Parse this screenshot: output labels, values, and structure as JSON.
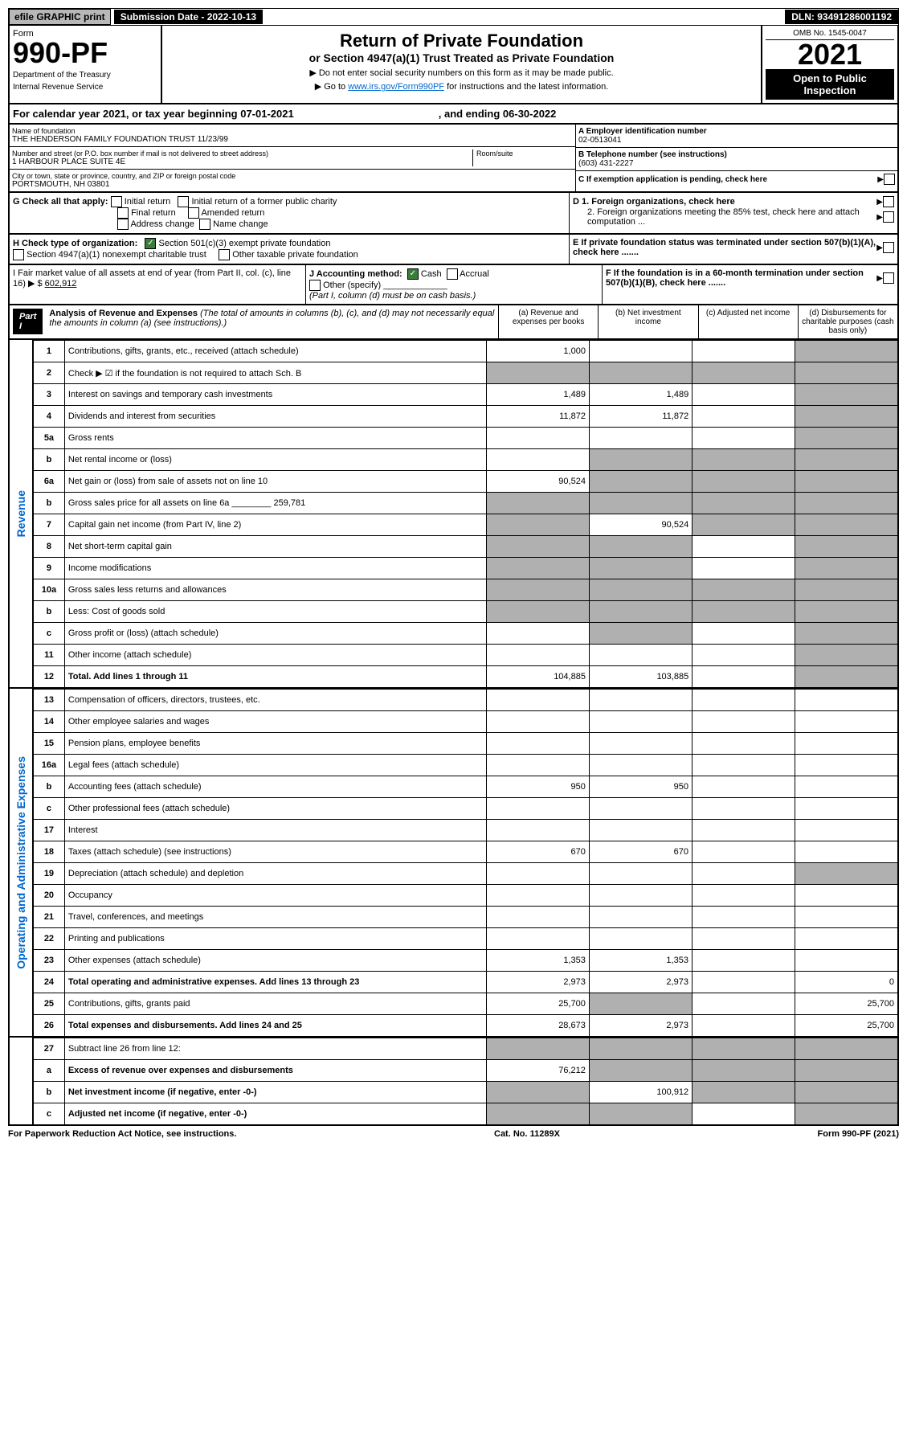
{
  "top": {
    "efile": "efile GRAPHIC print",
    "sub_label": "Submission Date - 2022-10-13",
    "dln": "DLN: 93491286001192"
  },
  "header": {
    "form": "Form",
    "form_no": "990-PF",
    "dept": "Department of the Treasury",
    "irs": "Internal Revenue Service",
    "title": "Return of Private Foundation",
    "subtitle": "or Section 4947(a)(1) Trust Treated as Private Foundation",
    "instr1": "▶ Do not enter social security numbers on this form as it may be made public.",
    "instr2": "▶ Go to ",
    "instr_link": "www.irs.gov/Form990PF",
    "instr3": " for instructions and the latest information.",
    "omb": "OMB No. 1545-0047",
    "year": "2021",
    "open": "Open to Public Inspection"
  },
  "cal": {
    "text1": "For calendar year 2021, or tax year beginning 07-01-2021",
    "text2": ", and ending 06-30-2022"
  },
  "info": {
    "name_label": "Name of foundation",
    "name": "THE HENDERSON FAMILY FOUNDATION TRUST 11/23/99",
    "addr_label": "Number and street (or P.O. box number if mail is not delivered to street address)",
    "addr": "1 HARBOUR PLACE SUITE 4E",
    "room_label": "Room/suite",
    "city_label": "City or town, state or province, country, and ZIP or foreign postal code",
    "city": "PORTSMOUTH, NH  03801",
    "ein_label": "A Employer identification number",
    "ein": "02-0513041",
    "tel_label": "B Telephone number (see instructions)",
    "tel": "(603) 431-2227",
    "c": "C If exemption application is pending, check here",
    "d1": "D 1. Foreign organizations, check here",
    "d2": "2. Foreign organizations meeting the 85% test, check here and attach computation ...",
    "e": "E If private foundation status was terminated under section 507(b)(1)(A), check here .......",
    "f": "F If the foundation is in a 60-month termination under section 507(b)(1)(B), check here ......."
  },
  "g": {
    "label": "G Check all that apply:",
    "opts": [
      "Initial return",
      "Initial return of a former public charity",
      "Final return",
      "Amended return",
      "Address change",
      "Name change"
    ]
  },
  "h": {
    "label": "H Check type of organization:",
    "opt1": "Section 501(c)(3) exempt private foundation",
    "opt2": "Section 4947(a)(1) nonexempt charitable trust",
    "opt3": "Other taxable private foundation"
  },
  "i": {
    "label": "I Fair market value of all assets at end of year (from Part II, col. (c), line 16) ▶ $",
    "val": "602,912"
  },
  "j": {
    "label": "J Accounting method:",
    "cash": "Cash",
    "accrual": "Accrual",
    "other": "Other (specify)",
    "note": "(Part I, column (d) must be on cash basis.)"
  },
  "part1": {
    "label": "Part I",
    "title": "Analysis of Revenue and Expenses",
    "desc": "(The total of amounts in columns (b), (c), and (d) may not necessarily equal the amounts in column (a) (see instructions).)",
    "cols": {
      "a": "(a) Revenue and expenses per books",
      "b": "(b) Net investment income",
      "c": "(c) Adjusted net income",
      "d": "(d) Disbursements for charitable purposes (cash basis only)"
    }
  },
  "side": {
    "revenue": "Revenue",
    "expenses": "Operating and Administrative Expenses"
  },
  "colors": {
    "link": "#0066cc",
    "black": "#000000",
    "shade": "#b0b0b0",
    "check": "#3a7d3a"
  },
  "lines": [
    {
      "no": "1",
      "desc": "Contributions, gifts, grants, etc., received (attach schedule)",
      "a": "1,000",
      "b": "",
      "c": "",
      "d": "",
      "d_shade": true
    },
    {
      "no": "2",
      "desc": "Check ▶ ☑ if the foundation is not required to attach Sch. B",
      "a": "",
      "b": "",
      "c": "",
      "d": "",
      "all_shade": true
    },
    {
      "no": "3",
      "desc": "Interest on savings and temporary cash investments",
      "a": "1,489",
      "b": "1,489",
      "c": "",
      "d": "",
      "d_shade": true
    },
    {
      "no": "4",
      "desc": "Dividends and interest from securities",
      "a": "11,872",
      "b": "11,872",
      "c": "",
      "d": "",
      "d_shade": true
    },
    {
      "no": "5a",
      "desc": "Gross rents",
      "a": "",
      "b": "",
      "c": "",
      "d": "",
      "d_shade": true
    },
    {
      "no": "b",
      "desc": "Net rental income or (loss)",
      "a": "",
      "b": "",
      "c": "",
      "d": "",
      "bcd_shade": true
    },
    {
      "no": "6a",
      "desc": "Net gain or (loss) from sale of assets not on line 10",
      "a": "90,524",
      "b": "",
      "c": "",
      "d": "",
      "bcd_shade": true
    },
    {
      "no": "b",
      "desc": "Gross sales price for all assets on line 6a ________ 259,781",
      "a": "",
      "b": "",
      "c": "",
      "d": "",
      "all_shade": true
    },
    {
      "no": "7",
      "desc": "Capital gain net income (from Part IV, line 2)",
      "a": "",
      "b": "90,524",
      "c": "",
      "d": "",
      "a_shade": true,
      "cd_shade": true
    },
    {
      "no": "8",
      "desc": "Net short-term capital gain",
      "a": "",
      "b": "",
      "c": "",
      "d": "",
      "ab_shade": true,
      "d_shade": true
    },
    {
      "no": "9",
      "desc": "Income modifications",
      "a": "",
      "b": "",
      "c": "",
      "d": "",
      "ab_shade": true,
      "d_shade": true
    },
    {
      "no": "10a",
      "desc": "Gross sales less returns and allowances",
      "a": "",
      "b": "",
      "c": "",
      "d": "",
      "all_shade": true
    },
    {
      "no": "b",
      "desc": "Less: Cost of goods sold",
      "a": "",
      "b": "",
      "c": "",
      "d": "",
      "all_shade": true
    },
    {
      "no": "c",
      "desc": "Gross profit or (loss) (attach schedule)",
      "a": "",
      "b": "",
      "c": "",
      "d": "",
      "b_shade": true,
      "d_shade": true
    },
    {
      "no": "11",
      "desc": "Other income (attach schedule)",
      "a": "",
      "b": "",
      "c": "",
      "d": "",
      "d_shade": true
    },
    {
      "no": "12",
      "desc": "Total. Add lines 1 through 11",
      "a": "104,885",
      "b": "103,885",
      "c": "",
      "d": "",
      "bold": true,
      "d_shade": true
    }
  ],
  "exp_lines": [
    {
      "no": "13",
      "desc": "Compensation of officers, directors, trustees, etc.",
      "a": "",
      "b": "",
      "c": "",
      "d": ""
    },
    {
      "no": "14",
      "desc": "Other employee salaries and wages",
      "a": "",
      "b": "",
      "c": "",
      "d": ""
    },
    {
      "no": "15",
      "desc": "Pension plans, employee benefits",
      "a": "",
      "b": "",
      "c": "",
      "d": ""
    },
    {
      "no": "16a",
      "desc": "Legal fees (attach schedule)",
      "a": "",
      "b": "",
      "c": "",
      "d": ""
    },
    {
      "no": "b",
      "desc": "Accounting fees (attach schedule)",
      "a": "950",
      "b": "950",
      "c": "",
      "d": ""
    },
    {
      "no": "c",
      "desc": "Other professional fees (attach schedule)",
      "a": "",
      "b": "",
      "c": "",
      "d": ""
    },
    {
      "no": "17",
      "desc": "Interest",
      "a": "",
      "b": "",
      "c": "",
      "d": ""
    },
    {
      "no": "18",
      "desc": "Taxes (attach schedule) (see instructions)",
      "a": "670",
      "b": "670",
      "c": "",
      "d": ""
    },
    {
      "no": "19",
      "desc": "Depreciation (attach schedule) and depletion",
      "a": "",
      "b": "",
      "c": "",
      "d": "",
      "d_shade": true
    },
    {
      "no": "20",
      "desc": "Occupancy",
      "a": "",
      "b": "",
      "c": "",
      "d": ""
    },
    {
      "no": "21",
      "desc": "Travel, conferences, and meetings",
      "a": "",
      "b": "",
      "c": "",
      "d": ""
    },
    {
      "no": "22",
      "desc": "Printing and publications",
      "a": "",
      "b": "",
      "c": "",
      "d": ""
    },
    {
      "no": "23",
      "desc": "Other expenses (attach schedule)",
      "a": "1,353",
      "b": "1,353",
      "c": "",
      "d": ""
    },
    {
      "no": "24",
      "desc": "Total operating and administrative expenses. Add lines 13 through 23",
      "a": "2,973",
      "b": "2,973",
      "c": "",
      "d": "0",
      "bold": true
    },
    {
      "no": "25",
      "desc": "Contributions, gifts, grants paid",
      "a": "25,700",
      "b": "",
      "c": "",
      "d": "25,700",
      "b_shade": true
    },
    {
      "no": "26",
      "desc": "Total expenses and disbursements. Add lines 24 and 25",
      "a": "28,673",
      "b": "2,973",
      "c": "",
      "d": "25,700",
      "bold": true
    }
  ],
  "final_lines": [
    {
      "no": "27",
      "desc": "Subtract line 26 from line 12:",
      "a": "",
      "b": "",
      "c": "",
      "d": "",
      "all_shade": true
    },
    {
      "no": "a",
      "desc": "Excess of revenue over expenses and disbursements",
      "a": "76,212",
      "b": "",
      "c": "",
      "d": "",
      "bold": true,
      "bcd_shade": true
    },
    {
      "no": "b",
      "desc": "Net investment income (if negative, enter -0-)",
      "a": "",
      "b": "100,912",
      "c": "",
      "d": "",
      "bold": true,
      "a_shade": true,
      "cd_shade": true
    },
    {
      "no": "c",
      "desc": "Adjusted net income (if negative, enter -0-)",
      "a": "",
      "b": "",
      "c": "",
      "d": "",
      "bold": true,
      "ab_shade": true,
      "d_shade": true
    }
  ],
  "footer": {
    "left": "For Paperwork Reduction Act Notice, see instructions.",
    "mid": "Cat. No. 11289X",
    "right": "Form 990-PF (2021)"
  }
}
